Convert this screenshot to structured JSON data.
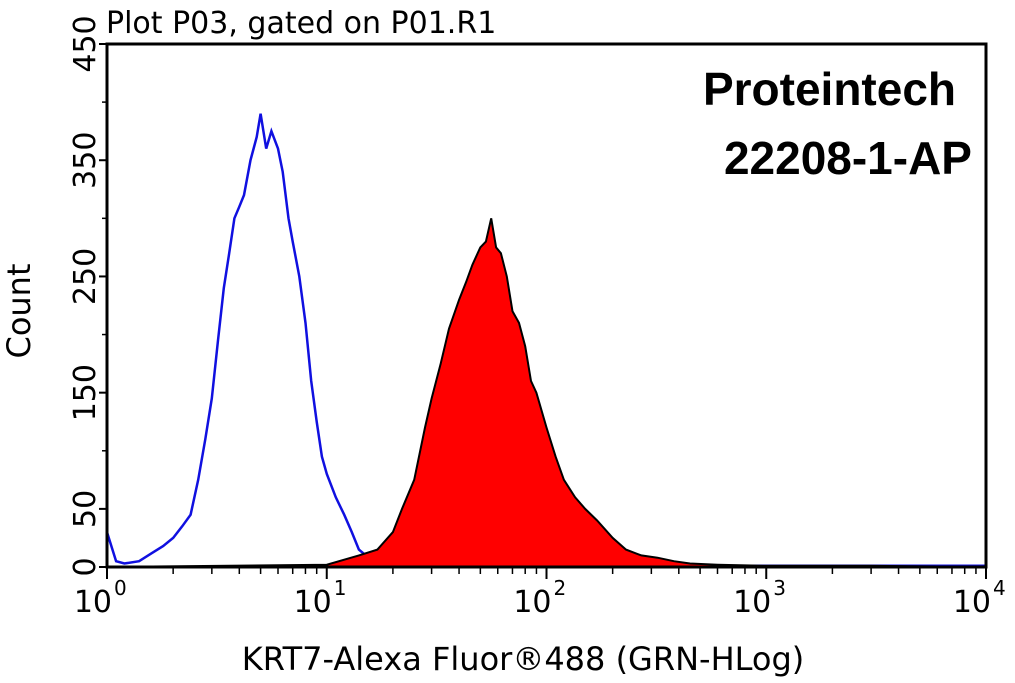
{
  "chart_data": {
    "type": "area",
    "title": "Plot P03, gated on P01.R1",
    "xlabel": "KRT7-Alexa Fluor®488 (GRN-HLog)",
    "ylabel": "Count",
    "x_scale": "log",
    "xlim": [
      1,
      10000
    ],
    "ylim": [
      0,
      450
    ],
    "x_ticks": [
      {
        "base": "10",
        "exp": "0",
        "value": 1
      },
      {
        "base": "10",
        "exp": "1",
        "value": 10
      },
      {
        "base": "10",
        "exp": "2",
        "value": 100
      },
      {
        "base": "10",
        "exp": "3",
        "value": 1000
      },
      {
        "base": "10",
        "exp": "4",
        "value": 10000
      }
    ],
    "y_ticks": [
      "0",
      "50",
      "150",
      "250",
      "350",
      "450"
    ],
    "y_tick_values": [
      0,
      50,
      150,
      250,
      350,
      450
    ],
    "annotations": [
      "Proteintech",
      "22208-1-AP"
    ],
    "series": [
      {
        "style": "outline",
        "color": "#1010e0",
        "x": [
          1.0,
          1.1,
          1.2,
          1.4,
          1.6,
          1.8,
          2.0,
          2.2,
          2.4,
          2.6,
          2.8,
          3.0,
          3.2,
          3.4,
          3.6,
          3.8,
          4.0,
          4.2,
          4.5,
          4.8,
          5.0,
          5.3,
          5.6,
          6.0,
          6.3,
          6.7,
          7.0,
          7.5,
          8.0,
          8.5,
          9.0,
          9.5,
          10.0,
          11.0,
          12.0,
          13.0,
          14.0,
          15.5,
          17,
          20,
          30,
          50,
          100,
          300,
          1000,
          10000
        ],
        "y": [
          30,
          5,
          3,
          5,
          12,
          18,
          25,
          35,
          45,
          75,
          110,
          145,
          195,
          240,
          270,
          300,
          310,
          320,
          350,
          370,
          390,
          360,
          375,
          360,
          340,
          300,
          280,
          250,
          210,
          160,
          125,
          95,
          80,
          60,
          45,
          30,
          15,
          8,
          4,
          2,
          2,
          1,
          1,
          1,
          1,
          1
        ]
      },
      {
        "style": "filled",
        "color": "#ff0000",
        "outline": "#000000",
        "x": [
          1.0,
          10,
          14,
          17,
          20,
          22,
          25,
          28,
          30,
          33,
          36,
          40,
          43,
          46,
          50,
          53,
          56,
          59,
          62,
          66,
          70,
          75,
          80,
          85,
          90,
          100,
          110,
          120,
          135,
          150,
          170,
          200,
          230,
          270,
          320,
          380,
          450,
          600,
          1000,
          3000,
          10000
        ],
        "y": [
          0,
          2,
          10,
          15,
          30,
          50,
          75,
          120,
          145,
          175,
          205,
          230,
          245,
          260,
          275,
          280,
          300,
          275,
          270,
          250,
          220,
          210,
          190,
          160,
          150,
          120,
          95,
          75,
          60,
          50,
          40,
          25,
          15,
          10,
          8,
          5,
          3,
          2,
          1,
          1,
          0
        ]
      }
    ],
    "grid": false
  }
}
